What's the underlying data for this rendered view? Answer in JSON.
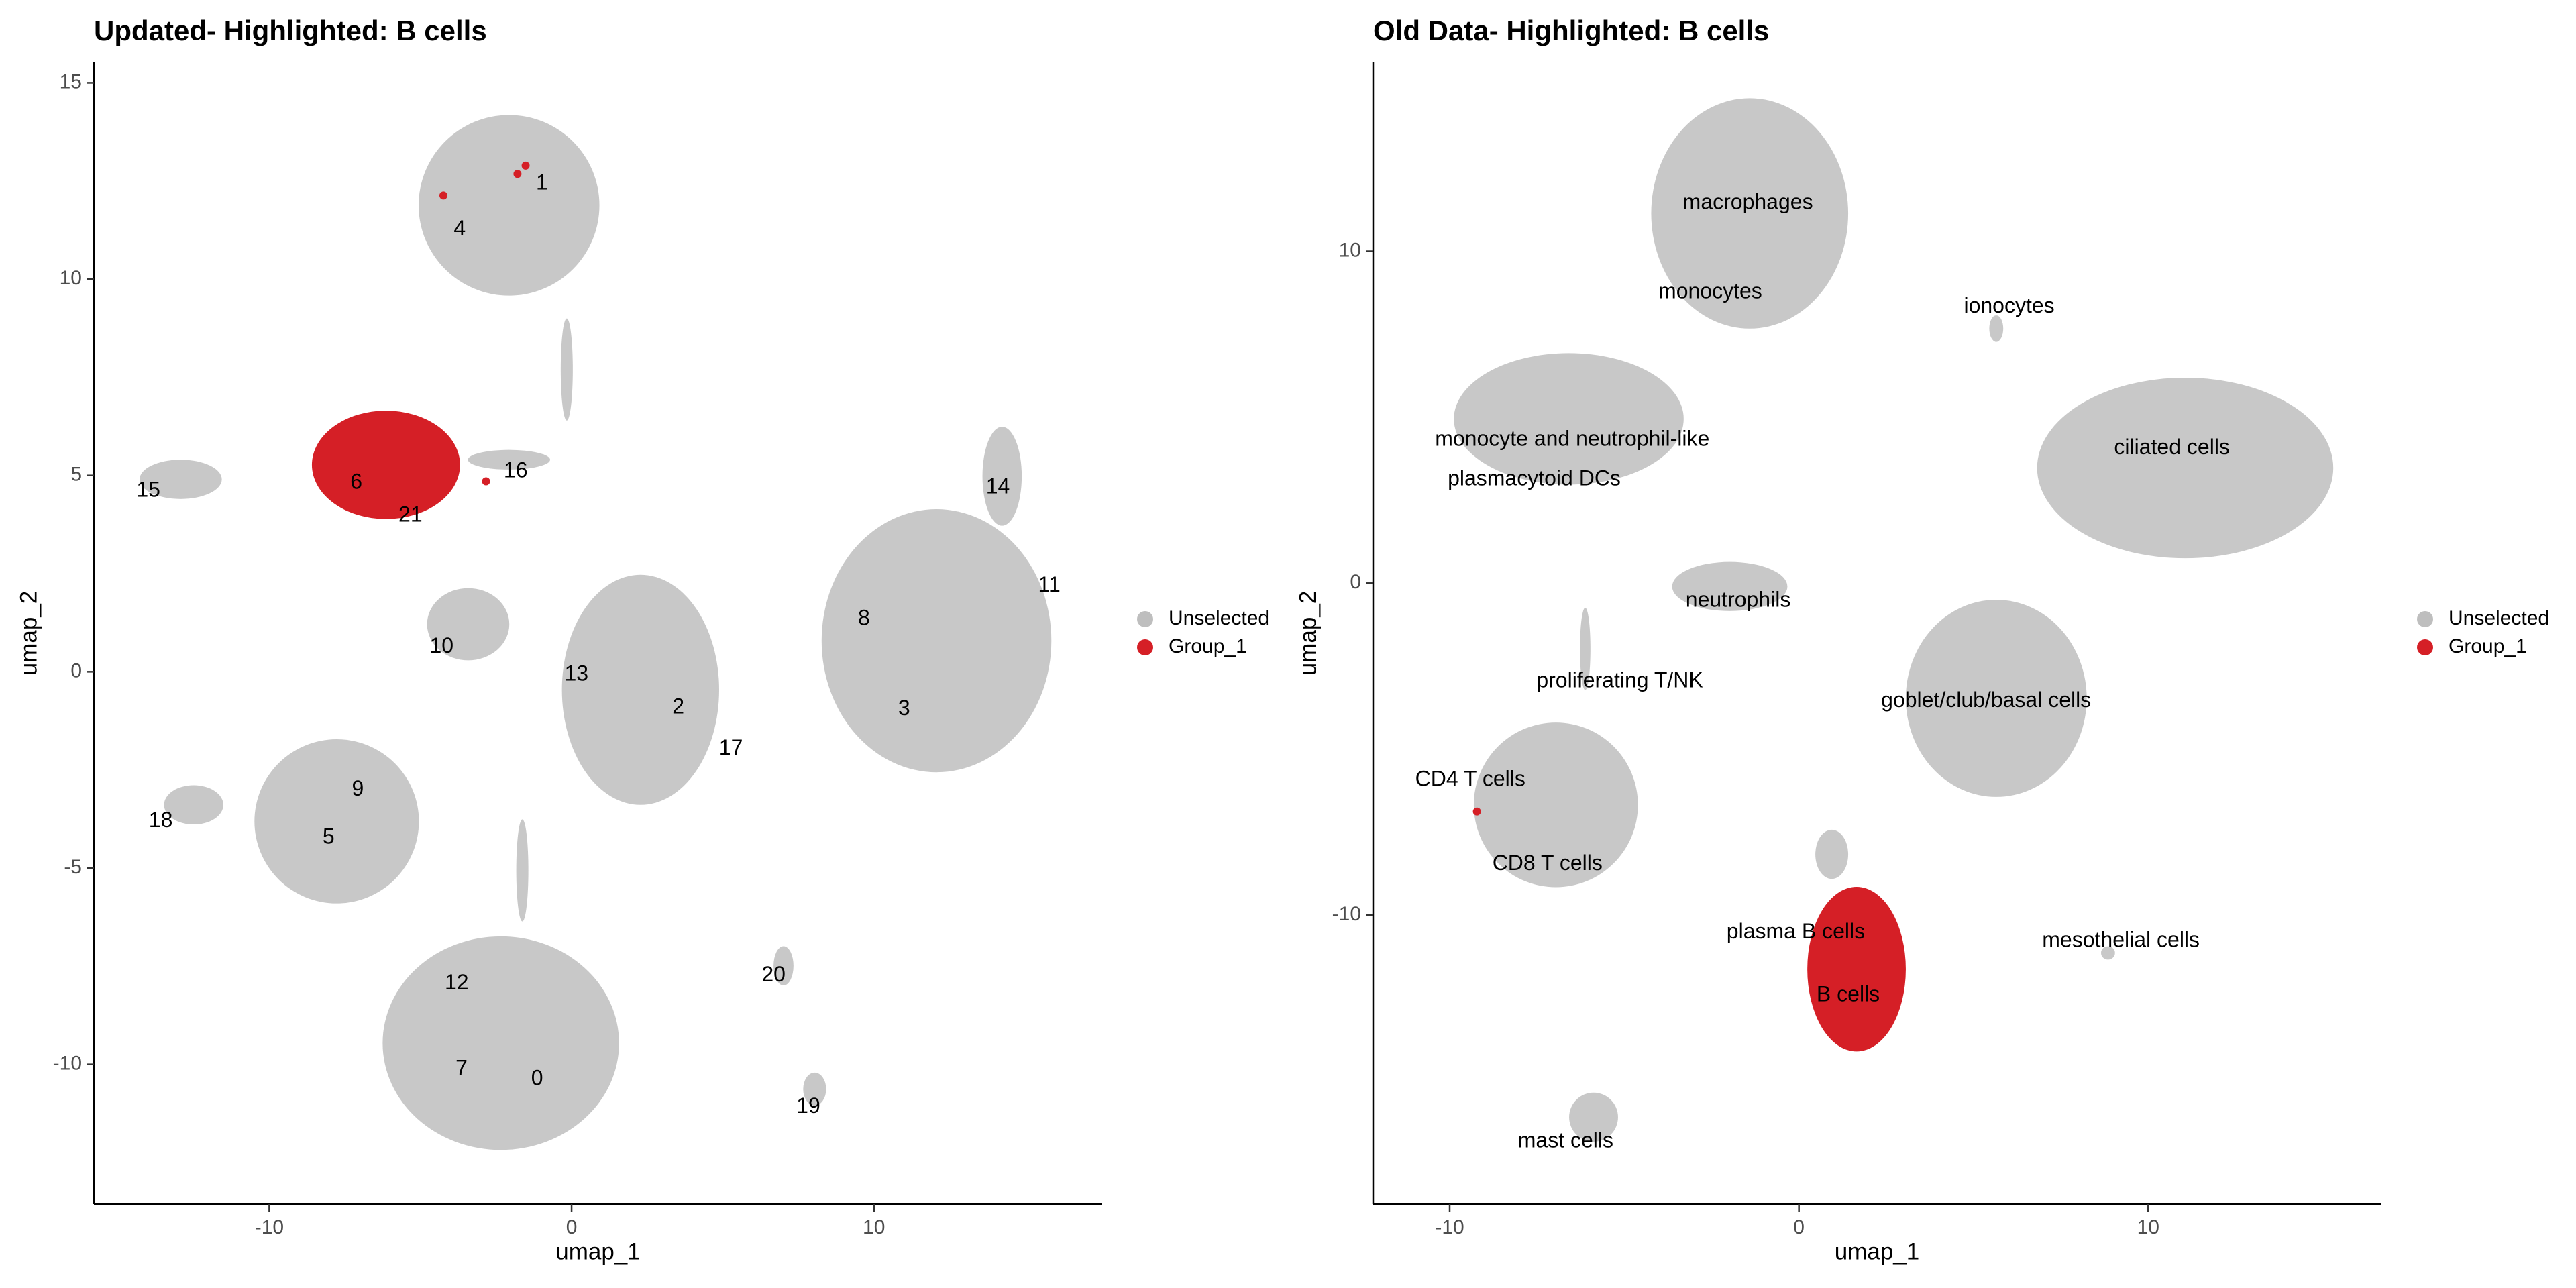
{
  "chart_data": [
    {
      "type": "scatter",
      "title": "Updated- Highlighted: B cells",
      "xlabel": "umap_1",
      "ylabel": "umap_2",
      "xlim": [
        -15.8,
        17.55
      ],
      "ylim": [
        -13.56,
        15.52
      ],
      "xticks": [
        -10,
        0,
        10
      ],
      "yticks": [
        -10,
        -5,
        0,
        5,
        10,
        15
      ],
      "legend": "right",
      "series": [
        {
          "name": "Unselected",
          "color": "#bebebe",
          "regions": [
            {
              "x": -2.07,
              "y": 11.88,
              "rx": 2.99,
              "ry": 2.3
            },
            {
              "x": -0.16,
              "y": 7.7,
              "rx": 0.2,
              "ry": 1.3
            },
            {
              "x": -2.07,
              "y": 5.4,
              "rx": 1.36,
              "ry": 0.25
            },
            {
              "x": -12.93,
              "y": 4.9,
              "rx": 1.36,
              "ry": 0.5
            },
            {
              "x": -3.42,
              "y": 1.21,
              "rx": 1.36,
              "ry": 0.92
            },
            {
              "x": 2.28,
              "y": -0.46,
              "rx": 2.6,
              "ry": 2.93
            },
            {
              "x": 12.07,
              "y": 0.79,
              "rx": 3.8,
              "ry": 3.35
            },
            {
              "x": 14.24,
              "y": 4.98,
              "rx": 0.65,
              "ry": 1.26
            },
            {
              "x": -7.77,
              "y": -3.81,
              "rx": 2.72,
              "ry": 2.09
            },
            {
              "x": -12.5,
              "y": -3.39,
              "rx": 0.98,
              "ry": 0.5
            },
            {
              "x": -2.34,
              "y": -9.46,
              "rx": 3.91,
              "ry": 2.72
            },
            {
              "x": -1.63,
              "y": -5.06,
              "rx": 0.2,
              "ry": 1.3
            },
            {
              "x": 7.01,
              "y": -7.49,
              "rx": 0.33,
              "ry": 0.5
            },
            {
              "x": 8.04,
              "y": -10.63,
              "rx": 0.38,
              "ry": 0.42
            }
          ]
        },
        {
          "name": "Group_1",
          "color": "#d51f26",
          "regions": [
            {
              "x": -6.14,
              "y": 5.27,
              "rx": 2.45,
              "ry": 1.38
            }
          ],
          "points": {
            "x": [
              -4.24,
              -1.79,
              -1.52,
              -2.83
            ],
            "y": [
              12.13,
              12.68,
              12.89,
              4.85
            ]
          }
        }
      ],
      "annotations": [
        {
          "text": "1",
          "x": -0.98,
          "y": 12.43
        },
        {
          "text": "4",
          "x": -3.7,
          "y": 11.26
        },
        {
          "text": "6",
          "x": -7.12,
          "y": 4.81
        },
        {
          "text": "21",
          "x": -5.33,
          "y": 3.97
        },
        {
          "text": "16",
          "x": -1.85,
          "y": 5.1
        },
        {
          "text": "15",
          "x": -14.0,
          "y": 4.6
        },
        {
          "text": "14",
          "x": 14.1,
          "y": 4.69
        },
        {
          "text": "11",
          "x": 15.8,
          "y": 2.18
        },
        {
          "text": "8",
          "x": 9.67,
          "y": 1.34
        },
        {
          "text": "3",
          "x": 11.0,
          "y": -0.96
        },
        {
          "text": "10",
          "x": -4.3,
          "y": 0.63
        },
        {
          "text": "13",
          "x": 0.16,
          "y": -0.08
        },
        {
          "text": "2",
          "x": 3.53,
          "y": -0.92
        },
        {
          "text": "17",
          "x": 5.27,
          "y": -1.97
        },
        {
          "text": "9",
          "x": -7.07,
          "y": -3.01
        },
        {
          "text": "5",
          "x": -8.04,
          "y": -4.23
        },
        {
          "text": "18",
          "x": -13.59,
          "y": -3.81
        },
        {
          "text": "12",
          "x": -3.8,
          "y": -7.95
        },
        {
          "text": "7",
          "x": -3.64,
          "y": -10.13
        },
        {
          "text": "0",
          "x": -1.14,
          "y": -10.38
        },
        {
          "text": "20",
          "x": 6.68,
          "y": -7.74
        },
        {
          "text": "19",
          "x": 7.83,
          "y": -11.09
        }
      ]
    },
    {
      "type": "scatter",
      "title": "Old Data- Highlighted: B cells",
      "xlabel": "umap_1",
      "ylabel": "umap_2",
      "xlim": [
        -12.19,
        16.66
      ],
      "ylim": [
        -18.71,
        15.69
      ],
      "xticks": [
        -10,
        0,
        10
      ],
      "yticks": [
        -10,
        0,
        10
      ],
      "legend": "right",
      "series": [
        {
          "name": "Unselected",
          "color": "#bebebe",
          "regions": [
            {
              "x": -1.41,
              "y": 11.14,
              "rx": 2.82,
              "ry": 3.47
            },
            {
              "x": -6.59,
              "y": 4.95,
              "rx": 3.29,
              "ry": 1.98
            },
            {
              "x": 5.65,
              "y": 7.67,
              "rx": 0.2,
              "ry": 0.4
            },
            {
              "x": 11.06,
              "y": 3.47,
              "rx": 4.24,
              "ry": 2.72
            },
            {
              "x": -1.98,
              "y": -0.1,
              "rx": 1.65,
              "ry": 0.74
            },
            {
              "x": -6.12,
              "y": -1.98,
              "rx": 0.15,
              "ry": 1.24
            },
            {
              "x": 5.65,
              "y": -3.47,
              "rx": 2.59,
              "ry": 2.97
            },
            {
              "x": -6.96,
              "y": -6.68,
              "rx": 2.35,
              "ry": 2.48
            },
            {
              "x": 0.94,
              "y": -8.17,
              "rx": 0.47,
              "ry": 0.74
            },
            {
              "x": 8.85,
              "y": -11.14,
              "rx": 0.2,
              "ry": 0.2
            },
            {
              "x": -5.88,
              "y": -16.09,
              "rx": 0.7,
              "ry": 0.74
            }
          ]
        },
        {
          "name": "Group_1",
          "color": "#d51f26",
          "regions": [
            {
              "x": 1.65,
              "y": -11.63,
              "rx": 1.41,
              "ry": 2.48
            }
          ],
          "points": {
            "x": [
              -9.22
            ],
            "y": [
              -6.88
            ]
          }
        }
      ],
      "annotations": [
        {
          "text": "macrophages",
          "x": -1.46,
          "y": 11.44
        },
        {
          "text": "monocytes",
          "x": -2.54,
          "y": 8.76
        },
        {
          "text": "ionocytes",
          "x": 6.02,
          "y": 8.32
        },
        {
          "text": "monocyte and neutrophil-like",
          "x": -6.49,
          "y": 4.31
        },
        {
          "text": "plasmacytoid DCs",
          "x": -7.58,
          "y": 3.12
        },
        {
          "text": "ciliated cells",
          "x": 10.68,
          "y": 4.06
        },
        {
          "text": "neutrophils",
          "x": -1.74,
          "y": -0.54
        },
        {
          "text": "proliferating T/NK",
          "x": -5.13,
          "y": -2.97
        },
        {
          "text": "goblet/club/basal cells",
          "x": 5.36,
          "y": -3.56
        },
        {
          "text": "CD4 T cells",
          "x": -9.41,
          "y": -5.94
        },
        {
          "text": "CD8 T cells",
          "x": -7.2,
          "y": -8.47
        },
        {
          "text": "plasma B cells",
          "x": -0.09,
          "y": -10.54
        },
        {
          "text": "mesothelial cells",
          "x": 9.22,
          "y": -10.79
        },
        {
          "text": "B cells",
          "x": 1.41,
          "y": -12.43
        },
        {
          "text": "mast cells",
          "x": -6.68,
          "y": -16.83
        }
      ]
    }
  ]
}
